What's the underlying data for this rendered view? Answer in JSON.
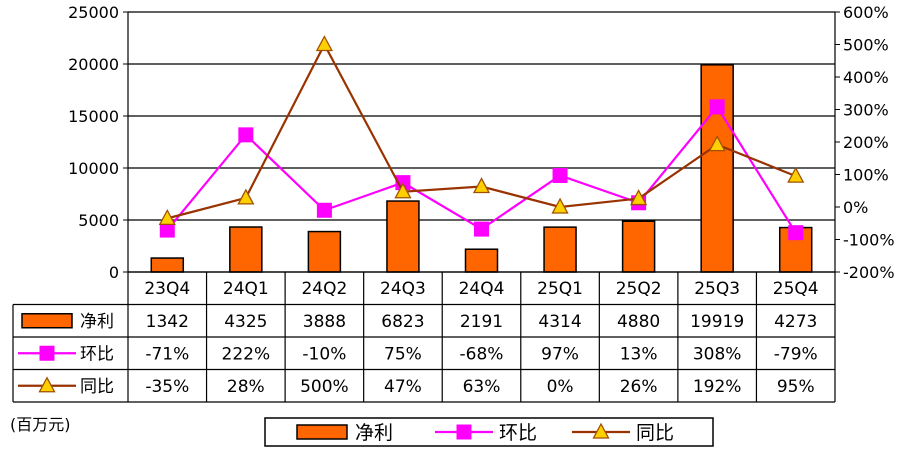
{
  "chart_data": {
    "type": "bar+line",
    "categories": [
      "23Q4",
      "24Q1",
      "24Q2",
      "24Q3",
      "24Q4",
      "25Q1",
      "25Q2",
      "25Q3",
      "25Q4"
    ],
    "unit_note": "(百万元)",
    "y_left": {
      "min": 0,
      "max": 25000,
      "ticks": [
        "0",
        "5000",
        "10000",
        "15000",
        "20000",
        "25000"
      ]
    },
    "y_right": {
      "min": -200,
      "max": 600,
      "ticks": [
        "-200%",
        "-100%",
        "0%",
        "100%",
        "200%",
        "300%",
        "400%",
        "500%",
        "600%"
      ]
    },
    "grid": true,
    "series": [
      {
        "name": "净利",
        "kind": "bar",
        "axis": "left",
        "values": [
          1342,
          4325,
          3888,
          6823,
          2191,
          4314,
          4880,
          19919,
          4273
        ],
        "labels": [
          "1342",
          "4325",
          "3888",
          "6823",
          "2191",
          "4314",
          "4880",
          "19919",
          "4273"
        ],
        "color": "#FF6600"
      },
      {
        "name": "环比",
        "kind": "line",
        "axis": "right",
        "marker": "square",
        "values": [
          -71,
          222,
          -10,
          75,
          -68,
          97,
          13,
          308,
          -79
        ],
        "labels": [
          "-71%",
          "222%",
          "-10%",
          "75%",
          "-68%",
          "97%",
          "13%",
          "308%",
          "-79%"
        ],
        "color": "#FF00FF"
      },
      {
        "name": "同比",
        "kind": "line",
        "axis": "right",
        "marker": "triangle",
        "values": [
          -35,
          28,
          500,
          47,
          63,
          0,
          26,
          192,
          95
        ],
        "labels": [
          "-35%",
          "28%",
          "500%",
          "47%",
          "63%",
          "0%",
          "26%",
          "192%",
          "95%"
        ],
        "color": "#993300"
      }
    ],
    "legend_position": "bottom-center"
  }
}
